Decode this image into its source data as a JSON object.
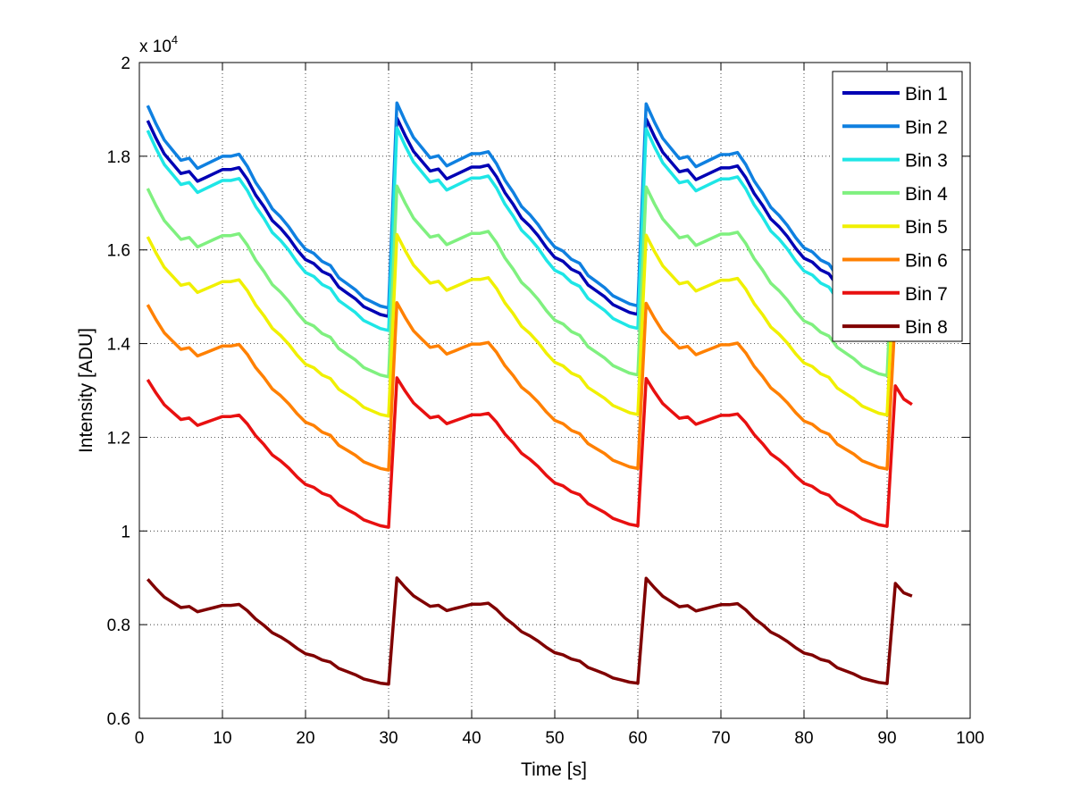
{
  "chart_data": {
    "type": "line",
    "title": "",
    "xlabel": "Time [s]",
    "ylabel": "Intensity [ADU]",
    "y_multiplier_label": "x 10",
    "y_multiplier_exponent": "4",
    "xlim": [
      0,
      100
    ],
    "ylim": [
      0.6,
      2.0
    ],
    "xticks": [
      0,
      10,
      20,
      30,
      40,
      50,
      60,
      70,
      80,
      90,
      100
    ],
    "xtick_labels": [
      "0",
      "10",
      "20",
      "30",
      "40",
      "50",
      "60",
      "70",
      "80",
      "90",
      "100"
    ],
    "yticks": [
      0.6,
      0.8,
      1.0,
      1.2,
      1.4,
      1.6,
      1.8,
      2.0
    ],
    "ytick_labels": [
      "0.6",
      "0.8",
      "1",
      "1.2",
      "1.4",
      "1.6",
      "1.8",
      "2"
    ],
    "grid": true,
    "legend_position": "top-right",
    "profile": [
      0,
      0.09,
      0.17,
      0.22,
      0.27,
      0.26,
      0.31,
      0.29,
      0.27,
      0.25,
      0.25,
      0.24,
      0.3,
      0.38,
      0.44,
      0.51,
      0.55,
      0.6,
      0.66,
      0.71,
      0.73,
      0.77,
      0.79,
      0.85,
      0.88,
      0.91,
      0.95,
      0.97,
      0.99,
      1.0
    ],
    "series": [
      {
        "name": "Bin 1",
        "color": "#0000b4",
        "start": 1.876,
        "end": 1.458
      },
      {
        "name": "Bin 2",
        "color": "#0f80e0",
        "start": 1.908,
        "end": 1.476
      },
      {
        "name": "Bin 3",
        "color": "#1ee6e6",
        "start": 1.855,
        "end": 1.428
      },
      {
        "name": "Bin 4",
        "color": "#7ff07f",
        "start": 1.731,
        "end": 1.329
      },
      {
        "name": "Bin 5",
        "color": "#f0f000",
        "start": 1.628,
        "end": 1.245
      },
      {
        "name": "Bin 6",
        "color": "#ff8000",
        "start": 1.483,
        "end": 1.13
      },
      {
        "name": "Bin 7",
        "color": "#e81010",
        "start": 1.323,
        "end": 1.008
      },
      {
        "name": "Bin 8",
        "color": "#800000",
        "start": 0.897,
        "end": 0.673
      }
    ],
    "periods": [
      {
        "t_start": 1,
        "t_end": 30,
        "scale": 1.0
      },
      {
        "t_start": 31,
        "t_end": 60,
        "scale": 1.003
      },
      {
        "t_start": 61,
        "t_end": 90,
        "scale": 1.002
      },
      {
        "t_start": 91,
        "t_end": 93,
        "scale": 0.99
      }
    ]
  }
}
